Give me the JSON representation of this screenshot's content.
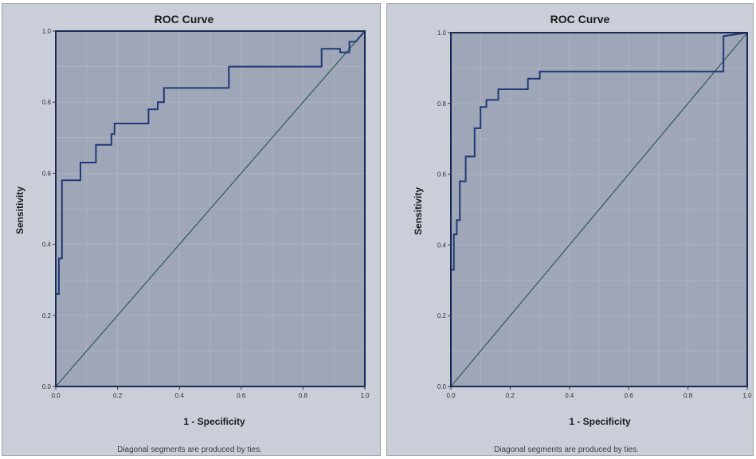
{
  "chart_data": [
    {
      "type": "line",
      "title": "ROC Curve",
      "xlabel": "1 - Specificity",
      "ylabel": "Sensitivity",
      "xlim": [
        0,
        1
      ],
      "ylim": [
        0,
        1
      ],
      "x_ticks": [
        "0.0",
        "0.2",
        "0.4",
        "0.6",
        "0.8",
        "1.0"
      ],
      "y_ticks": [
        "0.0",
        "0.2",
        "0.4",
        "0.6",
        "0.8",
        "1.0"
      ],
      "footnote": "Diagonal segments are produced by ties.",
      "reference_line": {
        "x": [
          0,
          1
        ],
        "y": [
          0,
          1
        ]
      },
      "series": [
        {
          "x": [
            0.0,
            0.0,
            0.01,
            0.01,
            0.02,
            0.02,
            0.04,
            0.05,
            0.08,
            0.08,
            0.13,
            0.13,
            0.18,
            0.18,
            0.19,
            0.19,
            0.3,
            0.3,
            0.33,
            0.33,
            0.35,
            0.35,
            0.56,
            0.56,
            0.58,
            0.58,
            0.81,
            0.81,
            0.86,
            0.86,
            0.92,
            0.92,
            0.95,
            0.95,
            0.97,
            1.0
          ],
          "y": [
            0.0,
            0.26,
            0.26,
            0.36,
            0.36,
            0.58,
            0.58,
            0.58,
            0.58,
            0.63,
            0.63,
            0.68,
            0.68,
            0.71,
            0.71,
            0.74,
            0.74,
            0.78,
            0.78,
            0.8,
            0.8,
            0.84,
            0.84,
            0.9,
            0.9,
            0.9,
            0.9,
            0.9,
            0.9,
            0.95,
            0.95,
            0.94,
            0.94,
            0.97,
            0.97,
            1.0
          ]
        }
      ]
    },
    {
      "type": "line",
      "title": "ROC Curve",
      "xlabel": "1 - Specificity",
      "ylabel": "Sensitivity",
      "xlim": [
        0,
        1
      ],
      "ylim": [
        0,
        1
      ],
      "x_ticks": [
        "0.0",
        "0.2",
        "0.4",
        "0.6",
        "0.8",
        "1.0"
      ],
      "y_ticks": [
        "0.0",
        "0.2",
        "0.4",
        "0.6",
        "0.8",
        "1.0"
      ],
      "footnote": "Diagonal segments are produced by ties.",
      "reference_line": {
        "x": [
          0,
          1
        ],
        "y": [
          0,
          1
        ]
      },
      "series": [
        {
          "x": [
            0.0,
            0.0,
            0.01,
            0.01,
            0.02,
            0.02,
            0.03,
            0.03,
            0.05,
            0.05,
            0.08,
            0.08,
            0.1,
            0.1,
            0.12,
            0.12,
            0.16,
            0.16,
            0.19,
            0.19,
            0.26,
            0.26,
            0.3,
            0.3,
            0.92,
            0.92,
            1.0
          ],
          "y": [
            0.0,
            0.33,
            0.33,
            0.43,
            0.43,
            0.47,
            0.47,
            0.58,
            0.58,
            0.65,
            0.65,
            0.73,
            0.73,
            0.79,
            0.79,
            0.81,
            0.81,
            0.84,
            0.84,
            0.84,
            0.84,
            0.87,
            0.87,
            0.89,
            0.89,
            0.99,
            1.0
          ]
        }
      ]
    }
  ]
}
